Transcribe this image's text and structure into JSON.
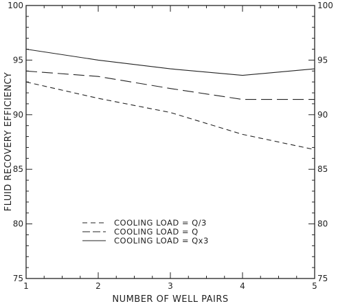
{
  "chart_data": {
    "type": "line",
    "title": "",
    "xlabel": "NUMBER OF WELL PAIRS",
    "ylabel": "FLUID RECOVERY EFFICIENCY",
    "x": [
      1,
      2,
      3,
      4,
      5
    ],
    "xlim": [
      1,
      5
    ],
    "ylim": [
      75,
      100
    ],
    "xticks": [
      "1",
      "2",
      "3",
      "4",
      "5"
    ],
    "yticks": [
      "75",
      "80",
      "85",
      "90",
      "95",
      "100"
    ],
    "grid": false,
    "legend_position": "lower-left",
    "series": [
      {
        "name": "COOLING LOAD = Q/3",
        "style": "dashed",
        "values": [
          93.0,
          91.5,
          90.2,
          88.2,
          86.8
        ]
      },
      {
        "name": "COOLING LOAD = Q",
        "style": "long-dashed",
        "values": [
          94.0,
          93.5,
          92.4,
          91.4,
          91.4
        ]
      },
      {
        "name": "COOLING LOAD = Qx3",
        "style": "solid",
        "values": [
          96.0,
          95.0,
          94.2,
          93.6,
          94.2
        ]
      }
    ]
  }
}
